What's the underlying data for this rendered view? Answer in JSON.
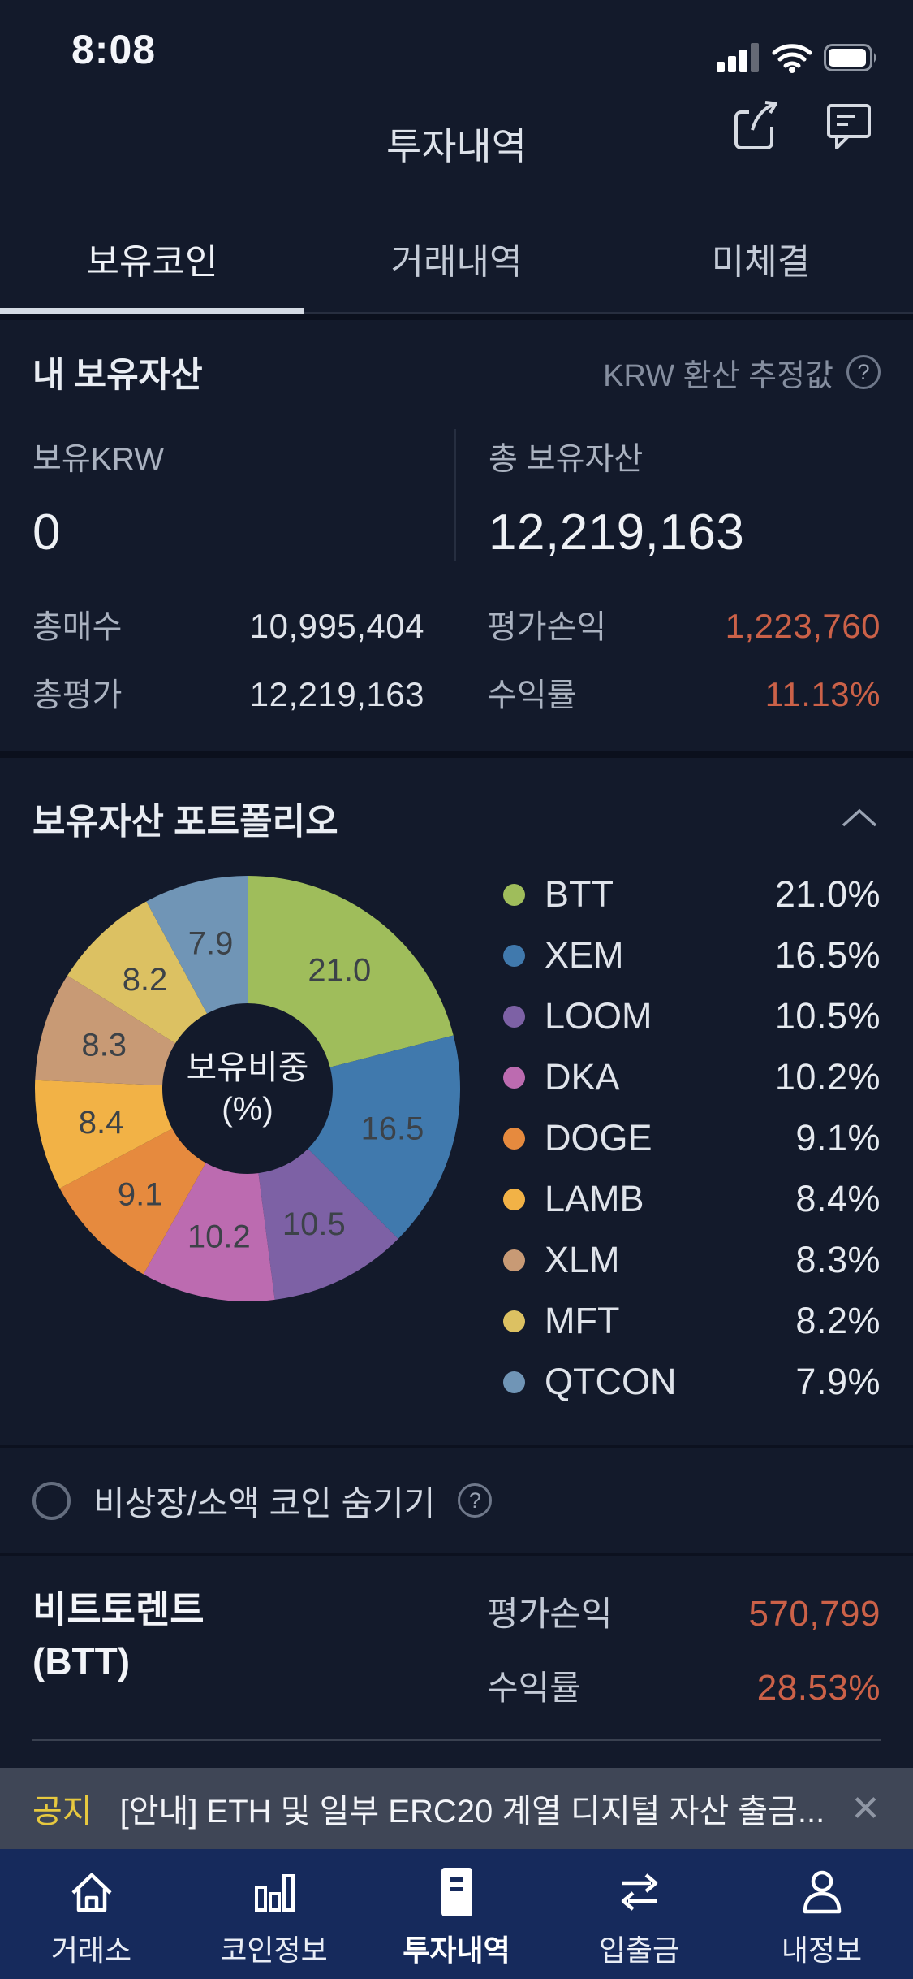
{
  "ui": {
    "question": "?"
  },
  "status_bar": {
    "time": "8:08"
  },
  "header": {
    "title": "투자내역"
  },
  "tabs": [
    {
      "label": "보유코인",
      "active": true
    },
    {
      "label": "거래내역",
      "active": false
    },
    {
      "label": "미체결",
      "active": false
    }
  ],
  "assets": {
    "section_title": "내 보유자산",
    "estimate_note": "KRW 환산 추정값",
    "hold_krw_label": "보유KRW",
    "hold_krw_value": "0",
    "total_label": "총 보유자산",
    "total_value": "12,219,163",
    "rows": {
      "buy_label": "총매수",
      "buy_value": "10,995,404",
      "eval_label": "총평가",
      "eval_value": "12,219,163",
      "pl_label": "평가손익",
      "pl_value": "1,223,760",
      "ror_label": "수익률",
      "ror_value": "11.13%"
    }
  },
  "portfolio": {
    "title": "보유자산 포트폴리오",
    "center_line1": "보유비중",
    "center_line2": "(%)"
  },
  "chart_data": {
    "type": "pie",
    "title": "보유자산 포트폴리오",
    "center_label": "보유비중 (%)",
    "unit": "%",
    "categories": [
      "BTT",
      "XEM",
      "LOOM",
      "DKA",
      "DOGE",
      "LAMB",
      "XLM",
      "MFT",
      "QTCON"
    ],
    "values": [
      21.0,
      16.5,
      10.5,
      10.2,
      9.1,
      8.4,
      8.3,
      8.2,
      7.9
    ],
    "colors": [
      "#9fbd5b",
      "#4079ad",
      "#7d61a5",
      "#bc6bb0",
      "#e68a3e",
      "#f2b246",
      "#c89a75",
      "#dcc162",
      "#7095b6"
    ],
    "start_angle_deg": 0,
    "direction": "clockwise",
    "donut_hole_ratio": 0.4,
    "slice_label_color": "#3c4248",
    "legend_position": "right"
  },
  "hide_small": {
    "label": "비상장/소액 코인 숨기기"
  },
  "holding": {
    "name_line1": "비트토렌트",
    "name_line2": "(BTT)",
    "pl_label": "평가손익",
    "pl_value": "570,799",
    "ror_label": "수익률",
    "ror_value": "28.53%"
  },
  "notice": {
    "badge": "공지",
    "text": "[안내] ETH 및 일부 ERC20 계열 디지털 자산 출금...",
    "close": "✕"
  },
  "tab_bar": [
    {
      "label": "거래소",
      "active": false
    },
    {
      "label": "코인정보",
      "active": false
    },
    {
      "label": "투자내역",
      "active": true
    },
    {
      "label": "입출금",
      "active": false
    },
    {
      "label": "내정보",
      "active": false
    }
  ],
  "colors": {
    "background": "#131a2b",
    "profit_up": "#cb6148",
    "notice_badge_yellow": "#e7c93f",
    "notice_bg": "#3f4656",
    "tabbar_bg": "#162a5c",
    "tab_underline": "#d3d9e2"
  }
}
